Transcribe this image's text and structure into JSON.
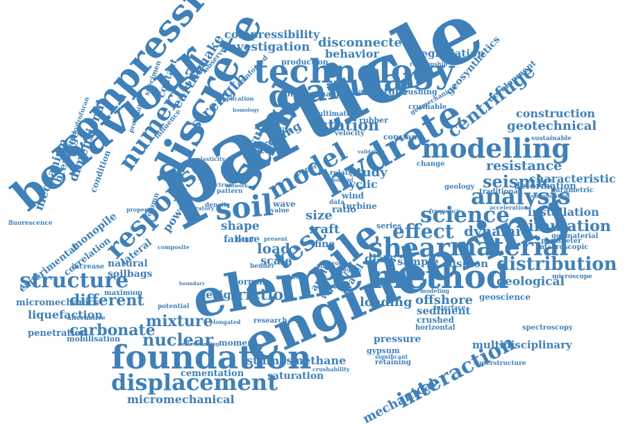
{
  "cloud": {
    "accent_color": "#3f80b8",
    "words": {
      "particle": "particle",
      "engineering": "engineering",
      "element": "element",
      "discrete": "discrete",
      "sand": "sand",
      "hydrate": "hydrate",
      "behaviour": "behaviour",
      "compression": "compression",
      "technology": "technology",
      "granular": "granular",
      "modelling": "modelling",
      "foundation": "foundation",
      "method": "method",
      "pile": "pile",
      "shear": "shear",
      "material": "material",
      "soil": "soil",
      "model": "model",
      "test": "test",
      "analysis": "analysis",
      "response": "response",
      "numerical": "numerical",
      "displacement": "displacement",
      "structure": "structure",
      "science": "science",
      "seismic": "seismic",
      "centrifuge": "centrifuge",
      "strength": "strength",
      "earthquake": "earthquake",
      "interaction": "interaction",
      "distribution": "distribution",
      "simulation": "simulation",
      "effect": "effect",
      "dynamic": "dynamic",
      "resistance": "resistance",
      "deformation": "deformation",
      "characteristic": "characteristic",
      "installation": "installation",
      "construction": "construction",
      "geotechnical": "geotechnical",
      "station": "station",
      "arching": "arching",
      "study": "study",
      "cyclic": "cyclic",
      "compressibility": "compressibility",
      "investigation": "investigation",
      "disconnected": "disconnected",
      "behavior": "behavior",
      "degradation": "degradation",
      "geosynthetics": "geosynthetics",
      "development": "development",
      "sandstone": "sandstone",
      "crushing": "crushing",
      "shaking": "shaking",
      "physical": "physical",
      "result": "result",
      "rubber": "rubber",
      "constant": "constant",
      "ultimate": "ultimate",
      "velocity": "velocity",
      "stability": "stability",
      "waste": "waste",
      "production": "production",
      "mechanism": "mechanism",
      "breakage": "breakage",
      "dimensional": "dimensional",
      "condition": "condition",
      "mixture": "mixture",
      "carbonate": "carbonate",
      "nuclear": "nuclear",
      "micromechanical": "micromechanical",
      "different": "different",
      "liquefaction": "liquefaction",
      "penetration": "penetration",
      "mobilisation": "mobilisation",
      "micromechanics": "micromechanics",
      "experimental": "experimental",
      "correlation": "correlation",
      "monopile": "monopile",
      "lateral": "lateral",
      "power": "power",
      "natural": "natural",
      "soilbags": "soilbags",
      "shape": "shape",
      "failure": "failure",
      "load": "load",
      "friction": "friction",
      "design": "design",
      "size": "size",
      "raft": "raft",
      "scale": "scale",
      "fine": "fine",
      "glass": "glass",
      "loading": "loading",
      "offshore": "offshore",
      "sediment": "sediment",
      "crushed": "crushed",
      "stiffness": "stiffness",
      "methane": "methane",
      "pressure": "pressure",
      "cementation": "cementation",
      "saturation": "saturation",
      "mechanical": "mechanical",
      "multidisciplinary": "multidisciplinary",
      "cushion": "cushion",
      "sample": "sample",
      "geological": "geological",
      "geoscience": "geoscience",
      "moment": "moment",
      "macroscopic": "macroscopic",
      "geomaterial": "geomaterial",
      "parameter": "parameter",
      "fluorescence": "fluorescence",
      "contact": "contact",
      "specimen": "specimen",
      "probability": "probability",
      "influence": "influence",
      "column": "column",
      "tetrahydrofuran": "tetrahydrofuran",
      "maximum": "maximum",
      "increase": "increase",
      "alternative": "alternative",
      "potential": "potential",
      "research": "research",
      "gypsum": "gypsum",
      "spectroscopy": "spectroscopy",
      "superstructure": "superstructure",
      "microscope": "microscope",
      "horizontal": "horizontal",
      "interface": "interface",
      "sustainable": "sustainable",
      "consolidation": "consolidation",
      "traditional": "traditional",
      "geology": "geology",
      "acceleration": "acceleration",
      "frequency": "frequency",
      "modeling": "modeling",
      "change": "change",
      "wind": "wind",
      "turbine": "turbine",
      "series": "series",
      "related": "related",
      "content": "content",
      "data": "data",
      "ratio": "ratio",
      "value": "value",
      "wave": "wave",
      "vertical": "vertical",
      "gravel": "gravel",
      "angle": "angle",
      "normal": "normal",
      "bond": "bond",
      "retaining": "retaining",
      "crushability": "crushability",
      "significant": "significant",
      "elongated": "elongated",
      "understanding": "understanding",
      "relationship": "relationship",
      "geomechanical": "geomechanical",
      "crushable": "crushable",
      "paper": "paper",
      "pattern": "pattern",
      "application": "application",
      "observed": "observed",
      "reinforced": "reinforced",
      "plasticity": "plasticity",
      "spectrum": "spectrum",
      "density": "density",
      "laboratory": "laboratory",
      "property": "property",
      "composite": "composite",
      "bender": "bender",
      "number": "number",
      "shaft": "shaft",
      "robin": "robin",
      "average": "average",
      "present": "present",
      "parametric": "parametric",
      "validation": "validation",
      "homology": "homology",
      "boundary": "boundary",
      "network": "network"
    }
  }
}
